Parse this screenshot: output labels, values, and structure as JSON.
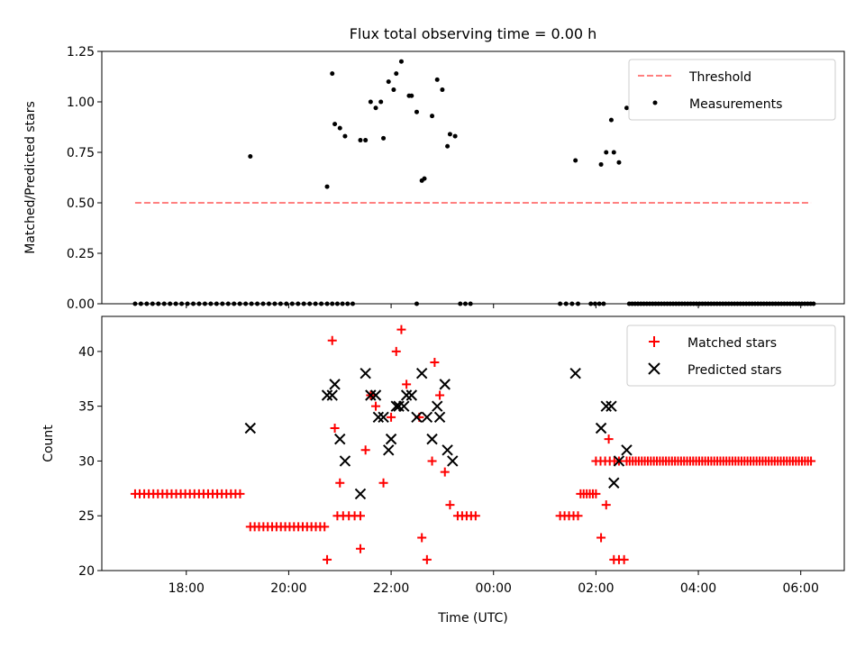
{
  "colors": {
    "measurement": "#000000",
    "threshold": "#ff8080",
    "matched": "#ff0000",
    "predicted": "#000000"
  },
  "chart_data": [
    {
      "type": "scatter",
      "title": "Flux total observing time = 0.00 h",
      "ylabel": "Matched/Predicted stars",
      "xlim": [
        16.35,
        30.85
      ],
      "ylim": [
        0,
        1.25
      ],
      "yticks": [
        0.0,
        0.25,
        0.5,
        0.75,
        1.0,
        1.25
      ],
      "ytick_labels": [
        "0.00",
        "0.25",
        "0.50",
        "0.75",
        "1.00",
        "1.25"
      ],
      "xticks": [
        18,
        20,
        22,
        24,
        26,
        28,
        30
      ],
      "legend": {
        "position": "top-right",
        "threshold": "Threshold",
        "measurements": "Measurements"
      },
      "threshold": {
        "x": [
          17.0,
          30.2
        ],
        "y": 0.5
      },
      "measurements": [
        [
          19.25,
          0.73
        ],
        [
          20.75,
          0.58
        ],
        [
          20.85,
          1.14
        ],
        [
          20.9,
          0.89
        ],
        [
          21.0,
          0.87
        ],
        [
          21.1,
          0.83
        ],
        [
          21.4,
          0.81
        ],
        [
          21.5,
          0.81
        ],
        [
          21.6,
          1.0
        ],
        [
          21.7,
          0.97
        ],
        [
          21.8,
          1.0
        ],
        [
          21.85,
          0.82
        ],
        [
          21.95,
          1.1
        ],
        [
          22.05,
          1.06
        ],
        [
          22.1,
          1.14
        ],
        [
          22.2,
          1.2
        ],
        [
          22.35,
          1.03
        ],
        [
          22.4,
          1.03
        ],
        [
          22.5,
          0.95
        ],
        [
          22.6,
          0.61
        ],
        [
          22.65,
          0.62
        ],
        [
          22.8,
          0.93
        ],
        [
          22.9,
          1.11
        ],
        [
          23.0,
          1.06
        ],
        [
          23.1,
          0.78
        ],
        [
          23.15,
          0.84
        ],
        [
          23.25,
          0.83
        ],
        [
          25.6,
          0.71
        ],
        [
          26.1,
          0.69
        ],
        [
          26.2,
          0.75
        ],
        [
          26.3,
          0.91
        ],
        [
          26.35,
          0.75
        ],
        [
          26.45,
          0.7
        ],
        [
          26.6,
          0.97
        ]
      ],
      "zero_segments": [
        [
          17.0,
          20.75,
          34
        ],
        [
          20.85,
          21.05,
          3
        ],
        [
          21.15,
          21.25,
          2
        ],
        [
          22.5,
          22.55,
          1
        ],
        [
          23.35,
          23.55,
          3
        ],
        [
          25.3,
          25.65,
          4
        ],
        [
          25.9,
          26.15,
          4
        ],
        [
          26.65,
          30.25,
          64
        ]
      ]
    },
    {
      "type": "scatter",
      "ylabel": "Count",
      "xlabel": "Time (UTC)",
      "xlim": [
        16.35,
        30.85
      ],
      "ylim": [
        20,
        43.2
      ],
      "yticks": [
        20,
        25,
        30,
        35,
        40
      ],
      "ytick_labels": [
        "20",
        "25",
        "30",
        "35",
        "40"
      ],
      "xticks": [
        18,
        20,
        22,
        24,
        26,
        28,
        30
      ],
      "xtick_labels": [
        "18:00",
        "20:00",
        "22:00",
        "00:00",
        "02:00",
        "04:00",
        "06:00"
      ],
      "legend": {
        "position": "top-right",
        "matched": "Matched stars",
        "predicted": "Predicted stars"
      },
      "matched_segments": [
        [
          17.0,
          19.05,
          27,
          24
        ],
        [
          19.25,
          20.7,
          24,
          18
        ],
        [
          26.0,
          26.45,
          30,
          6
        ],
        [
          26.6,
          30.2,
          30,
          62
        ],
        [
          20.95,
          21.4,
          25,
          5
        ],
        [
          23.3,
          23.65,
          25,
          5
        ],
        [
          25.3,
          25.65,
          25,
          5
        ],
        [
          25.7,
          26.0,
          27,
          6
        ]
      ],
      "matched_points": [
        [
          20.75,
          21
        ],
        [
          20.85,
          41
        ],
        [
          20.9,
          33
        ],
        [
          21.0,
          28
        ],
        [
          21.4,
          22
        ],
        [
          21.5,
          31
        ],
        [
          21.6,
          36
        ],
        [
          21.7,
          35
        ],
        [
          21.85,
          28
        ],
        [
          22.0,
          34
        ],
        [
          22.1,
          40
        ],
        [
          22.2,
          42
        ],
        [
          22.3,
          37
        ],
        [
          22.55,
          34
        ],
        [
          22.6,
          23
        ],
        [
          22.7,
          21
        ],
        [
          22.8,
          30
        ],
        [
          22.85,
          39
        ],
        [
          22.95,
          36
        ],
        [
          23.05,
          29
        ],
        [
          23.15,
          26
        ],
        [
          26.1,
          23
        ],
        [
          26.2,
          26
        ],
        [
          26.25,
          32
        ],
        [
          26.35,
          21
        ],
        [
          26.45,
          21
        ],
        [
          26.55,
          21
        ]
      ],
      "predicted": [
        [
          19.25,
          33
        ],
        [
          20.75,
          36
        ],
        [
          20.85,
          36
        ],
        [
          20.9,
          37
        ],
        [
          21.0,
          32
        ],
        [
          21.1,
          30
        ],
        [
          21.4,
          27
        ],
        [
          21.5,
          38
        ],
        [
          21.6,
          36
        ],
        [
          21.7,
          36
        ],
        [
          21.75,
          34
        ],
        [
          21.85,
          34
        ],
        [
          21.95,
          31
        ],
        [
          22.0,
          32
        ],
        [
          22.1,
          35
        ],
        [
          22.15,
          35
        ],
        [
          22.25,
          35
        ],
        [
          22.3,
          36
        ],
        [
          22.4,
          36
        ],
        [
          22.5,
          34
        ],
        [
          22.6,
          38
        ],
        [
          22.7,
          34
        ],
        [
          22.8,
          32
        ],
        [
          22.9,
          35
        ],
        [
          22.95,
          34
        ],
        [
          23.05,
          37
        ],
        [
          23.1,
          31
        ],
        [
          23.2,
          30
        ],
        [
          25.6,
          38
        ],
        [
          26.1,
          33
        ],
        [
          26.2,
          35
        ],
        [
          26.3,
          35
        ],
        [
          26.35,
          28
        ],
        [
          26.45,
          30
        ],
        [
          26.6,
          31
        ]
      ]
    }
  ]
}
